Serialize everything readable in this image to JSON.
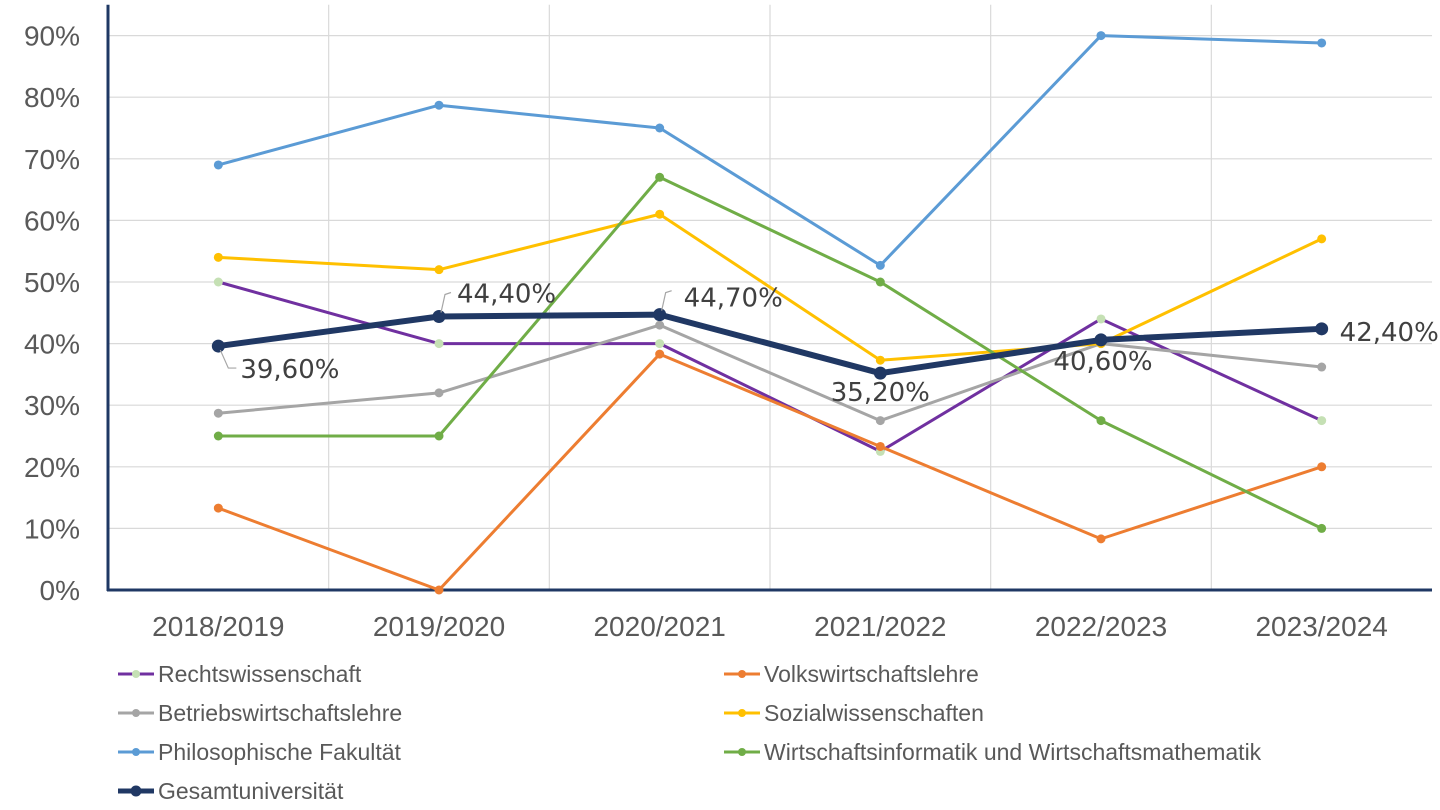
{
  "chart_data": {
    "type": "line",
    "title": "",
    "xlabel": "",
    "ylabel": "",
    "categories": [
      "2018/2019",
      "2019/2020",
      "2020/2021",
      "2021/2022",
      "2022/2023",
      "2023/2024"
    ],
    "y_tick_labels": [
      "0%",
      "10%",
      "20%",
      "30%",
      "40%",
      "50%",
      "60%",
      "70%",
      "80%",
      "90%"
    ],
    "ylim": [
      0,
      0.95
    ],
    "grid": true,
    "legend_position": "bottom",
    "series": [
      {
        "name": "Rechtswissenschaft",
        "color": "#7030A0",
        "width": 3,
        "marker_color": "#C5E0B4",
        "values": [
          0.5,
          0.4,
          0.4,
          0.225,
          0.44,
          0.275
        ]
      },
      {
        "name": "Volkswirtschaftslehre",
        "color": "#ED7D31",
        "width": 3,
        "values": [
          0.133,
          0.0,
          0.383,
          0.233,
          0.083,
          0.2
        ]
      },
      {
        "name": "Betriebswirtschaftslehre",
        "color": "#A5A5A5",
        "width": 3,
        "values": [
          0.287,
          0.32,
          0.43,
          0.275,
          0.4,
          0.362
        ]
      },
      {
        "name": "Sozialwissenschaften",
        "color": "#FFC000",
        "width": 3,
        "values": [
          0.54,
          0.52,
          0.61,
          0.373,
          0.4,
          0.57
        ]
      },
      {
        "name": "Philosophische Fakultät",
        "color": "#5B9BD5",
        "width": 3,
        "values": [
          0.69,
          0.787,
          0.75,
          0.527,
          0.9,
          0.888
        ]
      },
      {
        "name": "Wirtschaftsinformatik und Wirtschaftsmathematik",
        "color": "#70AD47",
        "width": 3,
        "values": [
          0.25,
          0.25,
          0.67,
          0.5,
          0.275,
          0.1
        ]
      },
      {
        "name": "Gesamtuniversität",
        "color": "#203864",
        "width": 6,
        "values": [
          0.396,
          0.444,
          0.447,
          0.352,
          0.406,
          0.424
        ],
        "data_labels": [
          "39,60%",
          "44,40%",
          "44,70%",
          "35,20%",
          "40,60%",
          "42,40%"
        ]
      }
    ]
  }
}
